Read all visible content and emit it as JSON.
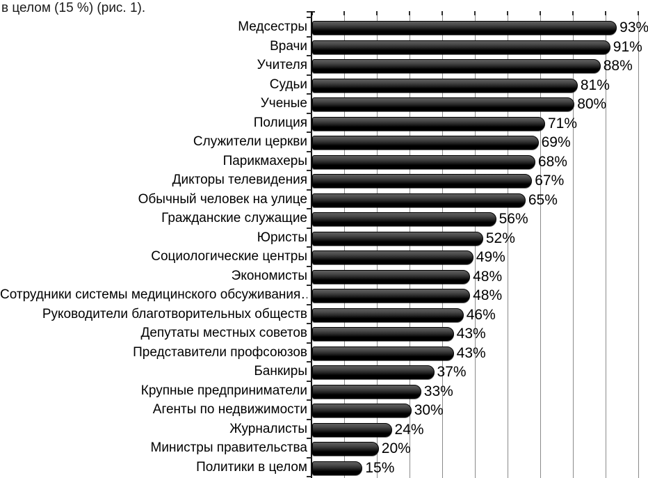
{
  "page_text": "в целом (15 %) (рис. 1).",
  "colors": {
    "background": "#ffffff",
    "bar_top": "#606060",
    "bar_bottom": "#000000",
    "gridline": "#8a8a8a",
    "axis": "#111111",
    "text": "#000000"
  },
  "chart_data": {
    "type": "bar",
    "orientation": "horizontal",
    "title": "",
    "xlabel": "",
    "ylabel": "",
    "xlim": [
      0,
      100
    ],
    "grid": true,
    "gridline_interval": 10,
    "unit": "%",
    "categories": [
      "Медсестры",
      "Врачи",
      "Учителя",
      "Судьи",
      "Ученые",
      "Полиция",
      "Служители церкви",
      "Парикмахеры",
      "Дикторы телевидения",
      "Обычный человек на улице",
      "Гражданские служащие",
      "Юристы",
      "Социологические центры",
      "Экономисты",
      "Сотрудники системы медицинского обсуживания…",
      "Руководители благотворительных обществ",
      "Депутаты местных советов",
      "Представители профсоюзов",
      "Банкиры",
      "Крупные предприниматели",
      "Агенты по недвижимости",
      "Журналисты",
      "Министры правительства",
      "Политики в целом"
    ],
    "values": [
      93,
      91,
      88,
      81,
      80,
      71,
      69,
      68,
      67,
      65,
      56,
      52,
      49,
      48,
      48,
      46,
      43,
      43,
      37,
      33,
      30,
      24,
      20,
      15
    ],
    "value_labels": [
      "93%",
      "91%",
      "88%",
      "81%",
      "80%",
      "71%",
      "69%",
      "68%",
      "67%",
      "65%",
      "56%",
      "52%",
      "49%",
      "48%",
      "48%",
      "46%",
      "43%",
      "43%",
      "37%",
      "33%",
      "30%",
      "24%",
      "20%",
      "15%"
    ]
  }
}
